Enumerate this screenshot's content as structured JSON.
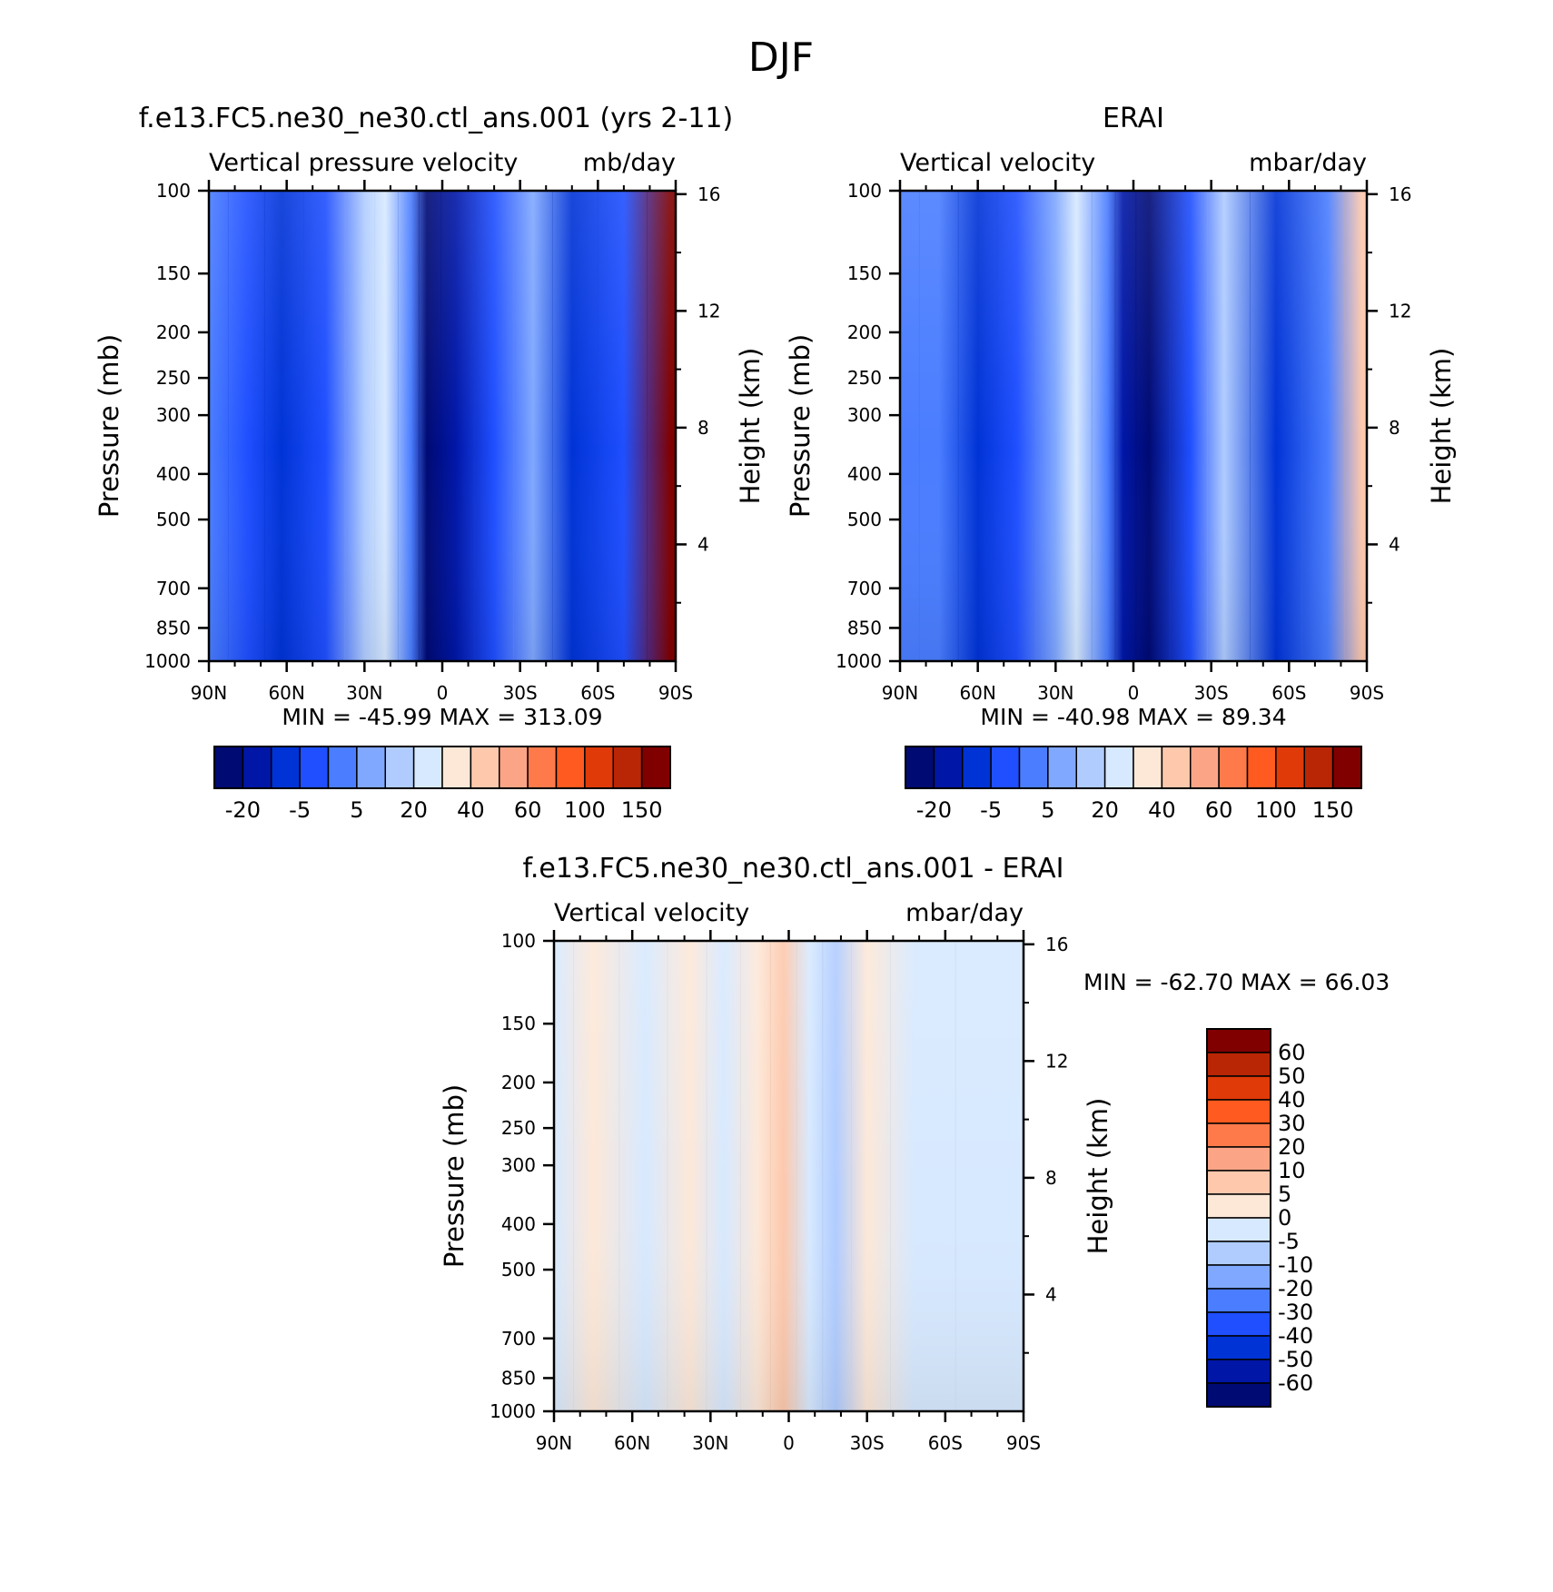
{
  "figure": {
    "title": "DJF"
  },
  "colors": {
    "model_obs_levels": [
      "#000a73",
      "#0016a6",
      "#0033d6",
      "#1f4fff",
      "#4a7dff",
      "#80a8ff",
      "#b0ccff",
      "#d7e9ff",
      "#fde8d8",
      "#fdc8ac",
      "#fca586",
      "#ff7a4a",
      "#ff5a1f",
      "#e03a08",
      "#b82606",
      "#800000"
    ],
    "diff_levels": [
      "#000a73",
      "#0016a6",
      "#0033d6",
      "#1f4fff",
      "#4a7dff",
      "#80a8ff",
      "#b0ccff",
      "#d7e9ff",
      "#fde8d8",
      "#fdc8ac",
      "#fca586",
      "#ff7a4a",
      "#ff5a1f",
      "#e03a08",
      "#b82606",
      "#800000"
    ]
  },
  "chart_data": [
    {
      "type": "heatmap",
      "panel_title": "f.e13.FC5.ne30_ne30.ctl_ans.001 (yrs 2-11)",
      "left_label": "Vertical pressure velocity",
      "right_label": "mb/day",
      "xlabel": "",
      "ylabel": "Pressure (mb)",
      "y2label": "Height (km)",
      "x_ticks": [
        "90N",
        "60N",
        "30N",
        "0",
        "30S",
        "60S",
        "90S"
      ],
      "x_values": [
        90,
        60,
        30,
        0,
        -30,
        -60,
        -90
      ],
      "y_ticks": [
        100,
        150,
        200,
        250,
        300,
        400,
        500,
        700,
        850,
        1000
      ],
      "y2_ticks": [
        16,
        12,
        8,
        4
      ],
      "ylim": [
        1000,
        100
      ],
      "y_scale": "log",
      "stats": "MIN = -45.99   MAX = 313.09",
      "colorbar": {
        "orientation": "horizontal",
        "labels": [
          "-20",
          "-5",
          "5",
          "20",
          "40",
          "60",
          "100",
          "150"
        ]
      },
      "bands": [
        {
          "lat": 90,
          "level": 4
        },
        {
          "lat": 75,
          "level": 3
        },
        {
          "lat": 62,
          "level": 2
        },
        {
          "lat": 45,
          "level": 3
        },
        {
          "lat": 30,
          "level": 6
        },
        {
          "lat": 22,
          "level": 7
        },
        {
          "lat": 12,
          "level": 4
        },
        {
          "lat": 6,
          "level": 0
        },
        {
          "lat": -5,
          "level": 1
        },
        {
          "lat": -20,
          "level": 3
        },
        {
          "lat": -35,
          "level": 5
        },
        {
          "lat": -50,
          "level": 2
        },
        {
          "lat": -70,
          "level": 3
        },
        {
          "lat": -88,
          "level": 15
        }
      ]
    },
    {
      "type": "heatmap",
      "panel_title": "ERAI",
      "left_label": "Vertical velocity",
      "right_label": "mbar/day",
      "xlabel": "",
      "ylabel": "Pressure (mb)",
      "y2label": "Height (km)",
      "x_ticks": [
        "90N",
        "60N",
        "30N",
        "0",
        "30S",
        "60S",
        "90S"
      ],
      "x_values": [
        90,
        60,
        30,
        0,
        -30,
        -60,
        -90
      ],
      "y_ticks": [
        100,
        150,
        200,
        250,
        300,
        400,
        500,
        700,
        850,
        1000
      ],
      "y2_ticks": [
        16,
        12,
        8,
        4
      ],
      "ylim": [
        1000,
        100
      ],
      "y_scale": "log",
      "stats": "MIN = -40.98   MAX =   89.34",
      "colorbar": {
        "orientation": "horizontal",
        "labels": [
          "-20",
          "-5",
          "5",
          "20",
          "40",
          "60",
          "100",
          "150"
        ]
      },
      "bands": [
        {
          "lat": 90,
          "level": 4
        },
        {
          "lat": 75,
          "level": 4
        },
        {
          "lat": 60,
          "level": 2
        },
        {
          "lat": 45,
          "level": 3
        },
        {
          "lat": 30,
          "level": 5
        },
        {
          "lat": 22,
          "level": 7
        },
        {
          "lat": 10,
          "level": 4
        },
        {
          "lat": 4,
          "level": 1
        },
        {
          "lat": -6,
          "level": 0
        },
        {
          "lat": -22,
          "level": 3
        },
        {
          "lat": -35,
          "level": 6
        },
        {
          "lat": -55,
          "level": 2
        },
        {
          "lat": -75,
          "level": 4
        },
        {
          "lat": -88,
          "level": 9
        }
      ]
    },
    {
      "type": "heatmap",
      "panel_title": "f.e13.FC5.ne30_ne30.ctl_ans.001 - ERAI",
      "left_label": "Vertical velocity",
      "right_label": "mbar/day",
      "xlabel": "",
      "ylabel": "Pressure (mb)",
      "y2label": "Height (km)",
      "x_ticks": [
        "90N",
        "60N",
        "30N",
        "0",
        "30S",
        "60S",
        "90S"
      ],
      "x_values": [
        90,
        60,
        30,
        0,
        -30,
        -60,
        -90
      ],
      "y_ticks": [
        100,
        150,
        200,
        250,
        300,
        400,
        500,
        700,
        850,
        1000
      ],
      "y2_ticks": [
        16,
        12,
        8,
        4
      ],
      "ylim": [
        1000,
        100
      ],
      "y_scale": "log",
      "stats": "MIN = -62.70   MAX =   66.03",
      "colorbar": {
        "orientation": "vertical",
        "labels": [
          "60",
          "50",
          "40",
          "30",
          "20",
          "10",
          "5",
          "0",
          "-5",
          "-10",
          "-20",
          "-30",
          "-40",
          "-50",
          "-60"
        ]
      },
      "bands": [
        {
          "lat": 90,
          "level": 7
        },
        {
          "lat": 75,
          "level": 8
        },
        {
          "lat": 55,
          "level": 7
        },
        {
          "lat": 38,
          "level": 8
        },
        {
          "lat": 25,
          "level": 7
        },
        {
          "lat": 12,
          "level": 8
        },
        {
          "lat": 2,
          "level": 9
        },
        {
          "lat": -8,
          "level": 7
        },
        {
          "lat": -18,
          "level": 6
        },
        {
          "lat": -30,
          "level": 8
        },
        {
          "lat": -48,
          "level": 7
        },
        {
          "lat": -80,
          "level": 7
        }
      ]
    }
  ]
}
